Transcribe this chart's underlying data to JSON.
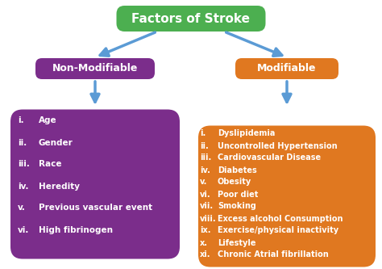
{
  "title": "Factors of Stroke",
  "title_color": "#ffffff",
  "title_bg": "#4caf50",
  "left_label": "Non-Modifiable",
  "left_label_bg": "#7b2d8b",
  "left_label_color": "#ffffff",
  "right_label": "Modifiable",
  "right_label_bg": "#e07820",
  "right_label_color": "#ffffff",
  "left_items_num": [
    "i.",
    "ii.",
    "iii.",
    "iv.",
    "v.",
    "vi."
  ],
  "left_items_text": [
    "Age",
    "Gender",
    "Race",
    "Heredity",
    "Previous vascular event",
    "High fibrinogen"
  ],
  "right_items_num": [
    "i.",
    "ii.",
    "iii.",
    "iv.",
    "v.",
    "vi.",
    "vii.",
    "viii.",
    "ix.",
    "x.",
    "xi."
  ],
  "right_items_text": [
    "Dyslipidemia",
    "Uncontrolled Hypertension",
    "Cardiovascular Disease",
    "Diabetes",
    "Obesity",
    "Poor diet",
    "Smoking",
    "Excess alcohol Consumption",
    "Exercise/physical inactivity",
    "Lifestyle",
    "Chronic Atrial fibrillation"
  ],
  "left_box_bg": "#7b2d8b",
  "right_box_bg": "#e07820",
  "arrow_color": "#5b9bd5",
  "bg_color": "#ffffff"
}
